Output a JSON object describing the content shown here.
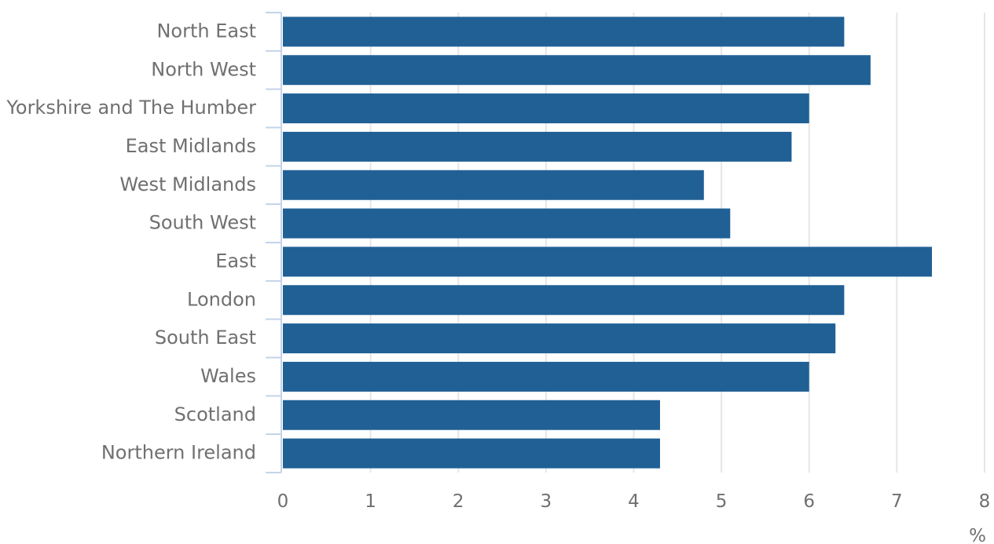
{
  "chart_data": {
    "type": "bar",
    "orientation": "horizontal",
    "categories": [
      "North East",
      "North West",
      "Yorkshire and The Humber",
      "East Midlands",
      "West Midlands",
      "South West",
      "East",
      "London",
      "South East",
      "Wales",
      "Scotland",
      "Northern Ireland"
    ],
    "values": [
      6.4,
      6.7,
      6.0,
      5.8,
      4.8,
      5.1,
      7.4,
      6.4,
      6.3,
      6.0,
      4.3,
      4.3
    ],
    "xlim": [
      0,
      8
    ],
    "xticks": [
      "0",
      "1",
      "2",
      "3",
      "4",
      "5",
      "6",
      "7",
      "8"
    ],
    "unit": "%",
    "grid": "vertical",
    "legend": "none",
    "colors": {
      "bar": "#206095",
      "grid": "#e6e6e6",
      "axis": "#c4d3ea",
      "text": "#707071"
    }
  }
}
